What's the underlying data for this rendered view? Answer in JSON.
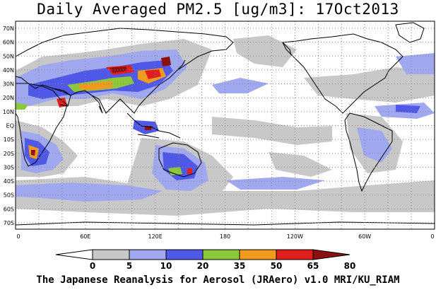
{
  "title": "Daily Averaged PM2.5 [ug/m3]: 17Oct2013",
  "credit": "The Japanese Reanalysis for Aerosol (JRAero) v1.0 MRI/KU_RIAM",
  "lat_labels": [
    "70N",
    "60N",
    "50N",
    "40N",
    "30N",
    "20N",
    "10N",
    "EQ",
    "10S",
    "20S",
    "30S",
    "40S",
    "50S",
    "60S",
    "70S"
  ],
  "lon_labels": [
    "0",
    "60E",
    "120E",
    "180",
    "120W",
    "60W",
    "0"
  ],
  "colorbar": {
    "ticks": [
      "0",
      "5",
      "10",
      "20",
      "35",
      "50",
      "65",
      "80"
    ],
    "colors": [
      "#ffffff",
      "#c8c8c8",
      "#a0a8f0",
      "#5058e8",
      "#8cc83c",
      "#f09a1e",
      "#e01e1e",
      "#8c1010"
    ]
  }
}
